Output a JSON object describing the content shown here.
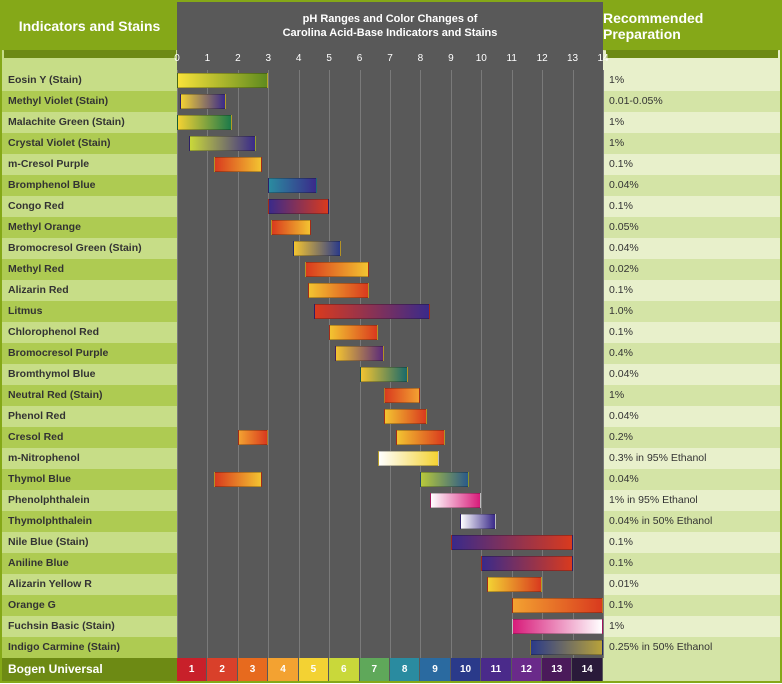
{
  "header": {
    "left": "Indicators and Stains",
    "center_l1": "pH Ranges and Color Changes of",
    "center_l2": "Carolina Acid-Base Indicators and Stains",
    "right": "Recommended Preparation"
  },
  "chart": {
    "ph_min": 0,
    "ph_max": 14,
    "axis_bg": "#595959",
    "grid_color": "#7a7a7a",
    "header_green": "#85a818",
    "header_green_dark": "#6d8a14",
    "row_light_l": "#c7dd87",
    "row_dark_l": "#aecb52",
    "row_light_r": "#e8f0cb",
    "row_dark_r": "#d4e4a6"
  },
  "indicators": [
    {
      "name": "Eosin Y (Stain)",
      "prep": "1%",
      "ranges": [
        {
          "lo": 0.0,
          "hi": 3.0,
          "c1": "#f8e23a",
          "c2": "#5f8b1f"
        }
      ]
    },
    {
      "name": "Methyl Violet (Stain)",
      "prep": "0.01-0.05%",
      "ranges": [
        {
          "lo": 0.1,
          "hi": 1.6,
          "c1": "#f3d233",
          "c2": "#3a2a8a"
        }
      ]
    },
    {
      "name": "Malachite Green (Stain)",
      "prep": "1%",
      "ranges": [
        {
          "lo": 0.0,
          "hi": 1.8,
          "c1": "#f3d233",
          "c2": "#1c7a4a"
        }
      ]
    },
    {
      "name": "Crystal Violet (Stain)",
      "prep": "1%",
      "ranges": [
        {
          "lo": 0.4,
          "hi": 2.6,
          "c1": "#c9d83a",
          "c2": "#3a2a8a"
        }
      ]
    },
    {
      "name": "m-Cresol Purple",
      "prep": "0.1%",
      "ranges": [
        {
          "lo": 1.2,
          "hi": 2.8,
          "c1": "#d93a1e",
          "c2": "#f3c431"
        }
      ]
    },
    {
      "name": "Bromphenol Blue",
      "prep": "0.04%",
      "ranges": [
        {
          "lo": 3.0,
          "hi": 4.6,
          "c1": "#2a8ba0",
          "c2": "#3a2a8a"
        }
      ]
    },
    {
      "name": "Congo Red",
      "prep": "0.1%",
      "ranges": [
        {
          "lo": 3.0,
          "hi": 5.0,
          "c1": "#3a2a8a",
          "c2": "#d93a1e"
        }
      ]
    },
    {
      "name": "Methyl Orange",
      "prep": "0.05%",
      "ranges": [
        {
          "lo": 3.1,
          "hi": 4.4,
          "c1": "#d93a1e",
          "c2": "#f3c431"
        }
      ]
    },
    {
      "name": "Bromocresol Green (Stain)",
      "prep": "0.04%",
      "ranges": [
        {
          "lo": 3.8,
          "hi": 5.4,
          "c1": "#f3c431",
          "c2": "#2a3a8a"
        }
      ]
    },
    {
      "name": "Methyl Red",
      "prep": "0.02%",
      "ranges": [
        {
          "lo": 4.2,
          "hi": 6.3,
          "c1": "#d93a1e",
          "c2": "#f3c431"
        }
      ]
    },
    {
      "name": "Alizarin Red",
      "prep": "0.1%",
      "ranges": [
        {
          "lo": 4.3,
          "hi": 6.3,
          "c1": "#f3c431",
          "c2": "#d93a1e"
        }
      ]
    },
    {
      "name": "Litmus",
      "prep": "1.0%",
      "ranges": [
        {
          "lo": 4.5,
          "hi": 8.3,
          "c1": "#d93a1e",
          "c2": "#3a2a8a"
        }
      ]
    },
    {
      "name": "Chlorophenol Red",
      "prep": "0.1%",
      "ranges": [
        {
          "lo": 5.0,
          "hi": 6.6,
          "c1": "#f3c431",
          "c2": "#d93a1e"
        }
      ]
    },
    {
      "name": "Bromocresol Purple",
      "prep": "0.4%",
      "ranges": [
        {
          "lo": 5.2,
          "hi": 6.8,
          "c1": "#f3c431",
          "c2": "#5a2a7a"
        }
      ]
    },
    {
      "name": "Bromthymol Blue",
      "prep": "0.04%",
      "ranges": [
        {
          "lo": 6.0,
          "hi": 7.6,
          "c1": "#f3c431",
          "c2": "#1a6a6a"
        }
      ]
    },
    {
      "name": "Neutral Red (Stain)",
      "prep": "1%",
      "ranges": [
        {
          "lo": 6.8,
          "hi": 8.0,
          "c1": "#d93a1e",
          "c2": "#f3a231"
        }
      ]
    },
    {
      "name": "Phenol Red",
      "prep": "0.04%",
      "ranges": [
        {
          "lo": 6.8,
          "hi": 8.2,
          "c1": "#f3c431",
          "c2": "#d93a1e"
        }
      ]
    },
    {
      "name": "Cresol Red",
      "prep": "0.2%",
      "ranges": [
        {
          "lo": 2.0,
          "hi": 3.0,
          "c1": "#f3a231",
          "c2": "#d93a1e"
        },
        {
          "lo": 7.2,
          "hi": 8.8,
          "c1": "#f3c431",
          "c2": "#d93a1e"
        }
      ]
    },
    {
      "name": "m-Nitrophenol",
      "prep": "0.3% in 95% Ethanol",
      "ranges": [
        {
          "lo": 6.6,
          "hi": 8.6,
          "c1": "#ffffff",
          "c2": "#f3d233"
        }
      ]
    },
    {
      "name": "Thymol Blue",
      "prep": "0.04%",
      "ranges": [
        {
          "lo": 1.2,
          "hi": 2.8,
          "c1": "#d93a1e",
          "c2": "#f3c431"
        },
        {
          "lo": 8.0,
          "hi": 9.6,
          "c1": "#b8c93a",
          "c2": "#2a5a8a"
        }
      ]
    },
    {
      "name": "Phenolphthalein",
      "prep": "1% in 95% Ethanol",
      "ranges": [
        {
          "lo": 8.3,
          "hi": 10.0,
          "c1": "#ffffff",
          "c2": "#d81b7a"
        }
      ]
    },
    {
      "name": "Thymolphthalein",
      "prep": "0.04% in 50% Ethanol",
      "ranges": [
        {
          "lo": 9.3,
          "hi": 10.5,
          "c1": "#ffffff",
          "c2": "#3a2a8a"
        }
      ]
    },
    {
      "name": "Nile Blue (Stain)",
      "prep": "0.1%",
      "ranges": [
        {
          "lo": 9.0,
          "hi": 13.0,
          "c1": "#3a2a8a",
          "c2": "#d93a1e"
        }
      ]
    },
    {
      "name": "Aniline Blue",
      "prep": "0.1%",
      "ranges": [
        {
          "lo": 10.0,
          "hi": 13.0,
          "c1": "#3a2a8a",
          "c2": "#d93a1e"
        }
      ]
    },
    {
      "name": "Alizarin Yellow R",
      "prep": "0.01%",
      "ranges": [
        {
          "lo": 10.2,
          "hi": 12.0,
          "c1": "#f3d233",
          "c2": "#d93a1e"
        }
      ]
    },
    {
      "name": "Orange G",
      "prep": "0.1%",
      "ranges": [
        {
          "lo": 11.0,
          "hi": 14.0,
          "c1": "#f3a231",
          "c2": "#d93a1e"
        }
      ]
    },
    {
      "name": "Fuchsin Basic (Stain)",
      "prep": "1%",
      "ranges": [
        {
          "lo": 11.0,
          "hi": 14.0,
          "c1": "#d81b7a",
          "c2": "#ffffff"
        }
      ]
    },
    {
      "name": "Indigo Carmine (Stain)",
      "prep": "0.25% in 50% Ethanol",
      "ranges": [
        {
          "lo": 11.6,
          "hi": 14.0,
          "c1": "#2a3a8a",
          "c2": "#b8a23a"
        }
      ]
    }
  ],
  "footer": {
    "label": "Bogen Universal",
    "swatches": [
      {
        "n": "1",
        "c": "#c8202a"
      },
      {
        "n": "2",
        "c": "#d9402a"
      },
      {
        "n": "3",
        "c": "#e76a1e"
      },
      {
        "n": "4",
        "c": "#f3a231"
      },
      {
        "n": "5",
        "c": "#f3d233"
      },
      {
        "n": "6",
        "c": "#c9d83a"
      },
      {
        "n": "7",
        "c": "#5fa85a"
      },
      {
        "n": "8",
        "c": "#2a8ba0"
      },
      {
        "n": "9",
        "c": "#2a6aa0"
      },
      {
        "n": "10",
        "c": "#2a3a8a"
      },
      {
        "n": "11",
        "c": "#4a2a8a"
      },
      {
        "n": "12",
        "c": "#6a2a8a"
      },
      {
        "n": "13",
        "c": "#4a1a5a"
      },
      {
        "n": "14",
        "c": "#2a1a3a"
      }
    ]
  }
}
